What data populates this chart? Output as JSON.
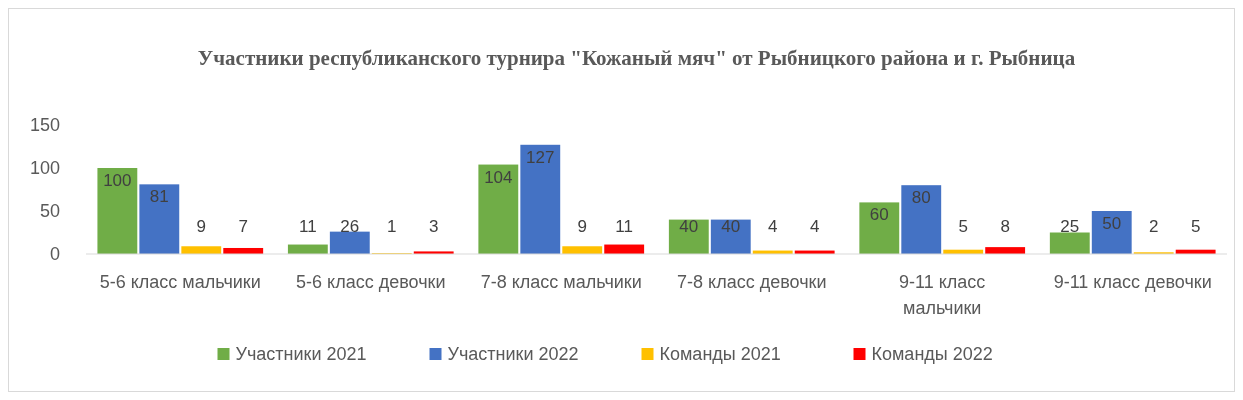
{
  "chart_data": {
    "type": "bar",
    "title": "Участники республиканского турнира \"Кожаный мяч\" от Рыбницкого района и г. Рыбница",
    "categories": [
      "5-6 класс мальчики",
      "5-6 класс девочки",
      "7-8 класс мальчики",
      "7-8 класс девочки",
      "9-11 класс мальчики",
      "9-11 класс девочки"
    ],
    "series": [
      {
        "name": "Участники 2021",
        "color": "#70ad47",
        "values": [
          100,
          11,
          104,
          40,
          60,
          25
        ]
      },
      {
        "name": "Участники 2022",
        "color": "#4472c4",
        "values": [
          81,
          26,
          127,
          40,
          80,
          50
        ]
      },
      {
        "name": "Команды 2021",
        "color": "#ffc000",
        "values": [
          9,
          1,
          9,
          4,
          5,
          2
        ]
      },
      {
        "name": "Команды 2022",
        "color": "#ff0000",
        "values": [
          7,
          3,
          11,
          4,
          8,
          5
        ]
      }
    ],
    "ylim": [
      0,
      150
    ],
    "yticks": [
      0,
      50,
      100,
      150
    ],
    "data_labels": true,
    "legend": "bottom"
  }
}
